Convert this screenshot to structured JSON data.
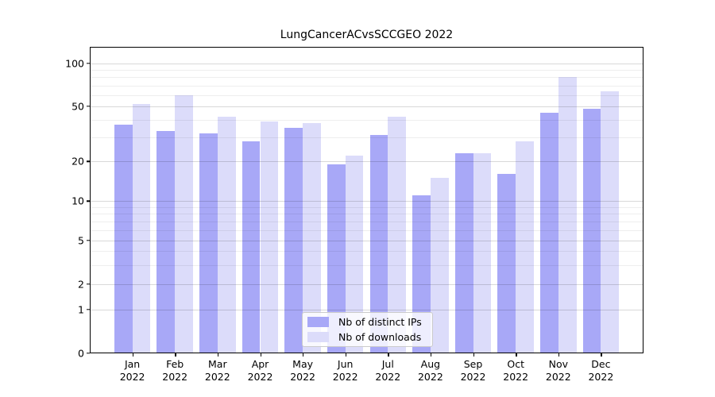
{
  "chart_data": {
    "type": "bar",
    "title": "LungCancerACvsSCCGEO 2022",
    "categories": [
      "Jan",
      "Feb",
      "Mar",
      "Apr",
      "May",
      "Jun",
      "Jul",
      "Aug",
      "Sep",
      "Oct",
      "Nov",
      "Dec"
    ],
    "year_label": "2022",
    "series": [
      {
        "name": "Nb of distinct IPs",
        "color": "#a8a8f7",
        "values": [
          37,
          33,
          32,
          28,
          35,
          19,
          31,
          11,
          23,
          16,
          45,
          48
        ]
      },
      {
        "name": "Nb of downloads",
        "color": "#dcdcfa",
        "values": [
          52,
          60,
          42,
          39,
          38,
          22,
          42,
          15,
          23,
          28,
          80,
          64
        ]
      }
    ],
    "y_ticks": [
      0,
      1,
      2,
      5,
      10,
      20,
      50,
      100
    ],
    "y_minor_gridlines": [
      3,
      4,
      6,
      7,
      8,
      9,
      30,
      40,
      60,
      70,
      80,
      90
    ],
    "ylim": [
      0,
      110
    ],
    "yscale": "symlog",
    "grid": "on",
    "legend_position": "lower center",
    "xlabel": "",
    "ylabel": ""
  }
}
